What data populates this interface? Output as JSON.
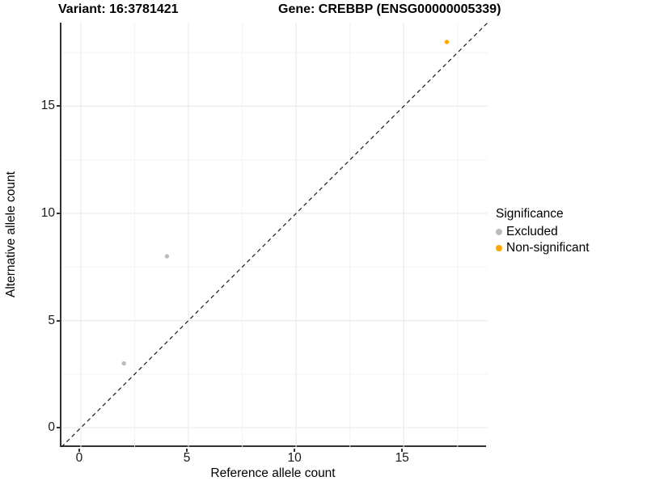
{
  "titles": {
    "variant": "Variant: 16:3781421",
    "gene": "Gene: CREBBP (ENSG00000005339)"
  },
  "legend": {
    "title": "Significance",
    "items": [
      {
        "label": "Excluded",
        "color": "#BBBBBB"
      },
      {
        "label": "Non-significant",
        "color": "#FFA500"
      }
    ]
  },
  "chart_data": {
    "type": "scatter",
    "title_left": "Variant: 16:3781421",
    "title_right": "Gene: CREBBP (ENSG00000005339)",
    "xlabel": "Reference allele count",
    "ylabel": "Alternative allele count",
    "xlim": [
      -0.9,
      18.9
    ],
    "ylim": [
      -0.9,
      18.9
    ],
    "x_ticks": [
      0,
      5,
      10,
      15
    ],
    "y_ticks": [
      0,
      5,
      10,
      15
    ],
    "minor_ticks": [
      2.5,
      7.5,
      12.5,
      17.5
    ],
    "grid": "major+minor",
    "legend_title": "Significance",
    "legend_position": "right",
    "reference_line": {
      "type": "identity y=x",
      "style": "dashed",
      "color": "#1A1A1A"
    },
    "series": [
      {
        "name": "Excluded",
        "color": "#BBBBBB",
        "points": [
          [
            2,
            3
          ],
          [
            4,
            8
          ]
        ]
      },
      {
        "name": "Non-significant",
        "color": "#FFA500",
        "points": [
          [
            17,
            18
          ]
        ]
      }
    ]
  },
  "colors": {
    "background": "#FFFFFF",
    "grid_major": "#E9E9E9",
    "grid_minor": "#F2F2F2",
    "axis_line": "#333333",
    "text": "#000000"
  }
}
